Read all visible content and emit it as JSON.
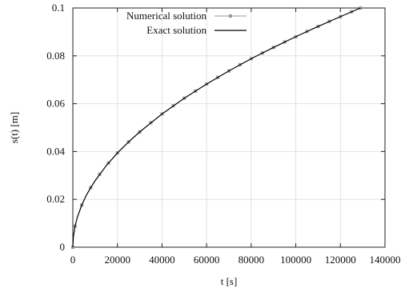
{
  "chart_data": {
    "type": "line",
    "xlabel": "t [s]",
    "ylabel": "s(t) [m]",
    "xlim": [
      0,
      140000
    ],
    "ylim": [
      0,
      0.1
    ],
    "x_ticks": [
      0,
      20000,
      40000,
      60000,
      80000,
      100000,
      120000,
      140000
    ],
    "x_tick_labels": [
      "0",
      "20000",
      "40000",
      "60000",
      "80000",
      "100000",
      "120000",
      "140000"
    ],
    "y_ticks": [
      0,
      0.02,
      0.04,
      0.06,
      0.08,
      0.1
    ],
    "y_tick_labels": [
      "0",
      "0.02",
      "0.04",
      "0.06",
      "0.08",
      "0.1"
    ],
    "grid": true,
    "legend_position": "top-center",
    "series": [
      {
        "name": "Numerical solution",
        "style": "markers",
        "color": "#9a9a9a",
        "x": [
          0,
          1000,
          4000,
          8000,
          12000,
          16000,
          20000,
          25000,
          30000,
          35000,
          40000,
          45000,
          50000,
          55000,
          60000,
          65000,
          70000,
          75000,
          80000,
          85000,
          90000,
          95000,
          100000,
          105000,
          110000,
          115000,
          120000,
          125000,
          129000
        ],
        "y": [
          0,
          0.0088,
          0.0176,
          0.0249,
          0.0305,
          0.0352,
          0.0394,
          0.044,
          0.0482,
          0.0521,
          0.0557,
          0.0591,
          0.0623,
          0.0653,
          0.0682,
          0.071,
          0.0737,
          0.0763,
          0.0788,
          0.0812,
          0.0835,
          0.0858,
          0.088,
          0.0902,
          0.0923,
          0.0944,
          0.0964,
          0.0984,
          0.1
        ]
      },
      {
        "name": "Exact solution",
        "style": "line",
        "color": "#000000",
        "x": [
          0,
          250,
          1000,
          2000,
          4000,
          6000,
          8000,
          10000,
          15000,
          20000,
          25000,
          30000,
          40000,
          50000,
          60000,
          70000,
          80000,
          90000,
          100000,
          110000,
          120000,
          129000
        ],
        "y": [
          0,
          0.0044,
          0.0088,
          0.0125,
          0.0176,
          0.0216,
          0.0249,
          0.0278,
          0.0341,
          0.0394,
          0.044,
          0.0482,
          0.0557,
          0.0623,
          0.0682,
          0.0737,
          0.0788,
          0.0835,
          0.088,
          0.0923,
          0.0964,
          0.1
        ]
      }
    ]
  }
}
